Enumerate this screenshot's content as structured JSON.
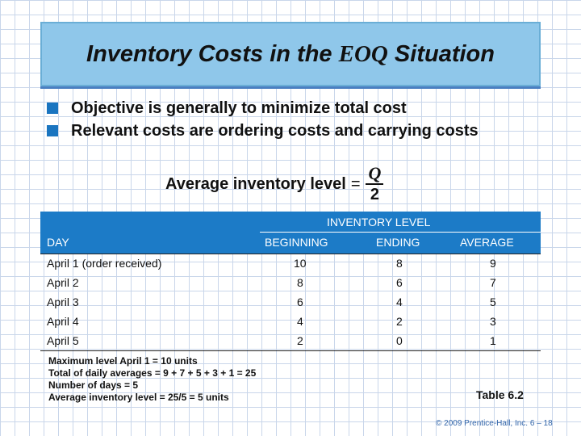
{
  "slide": {
    "title_pre": "Inventory Costs in the ",
    "title_eoq": "EOQ",
    "title_post": " Situation",
    "bullets": [
      "Objective is generally to minimize total cost",
      "Relevant costs are ordering costs and carrying costs"
    ],
    "formula": {
      "label": "Average inventory level",
      "equals": "=",
      "numerator": "Q",
      "denominator": "2"
    }
  },
  "table": {
    "group_header": "INVENTORY LEVEL",
    "headers": [
      "DAY",
      "BEGINNING",
      "ENDING",
      "AVERAGE"
    ],
    "rows": [
      {
        "day": "April 1 (order received)",
        "beginning": "10",
        "ending": "8",
        "average": "9"
      },
      {
        "day": "April 2",
        "beginning": "8",
        "ending": "6",
        "average": "7"
      },
      {
        "day": "April 3",
        "beginning": "6",
        "ending": "4",
        "average": "5"
      },
      {
        "day": "April 4",
        "beginning": "4",
        "ending": "2",
        "average": "3"
      },
      {
        "day": "April 5",
        "beginning": "2",
        "ending": "0",
        "average": "1"
      }
    ],
    "notes": [
      "Maximum level April 1 = 10 units",
      "Total of daily averages = 9 + 7 + 5 + 3 + 1 = 25",
      "Number of days = 5",
      "Average inventory level = 25/5 = 5 units"
    ],
    "label": "Table 6.2"
  },
  "footer": "© 2009 Prentice-Hall, Inc.   6 – 18",
  "colors": {
    "title_bg": "#8fc7ea",
    "header_band": "#1c7bc7",
    "bullet": "#1a75c0"
  }
}
